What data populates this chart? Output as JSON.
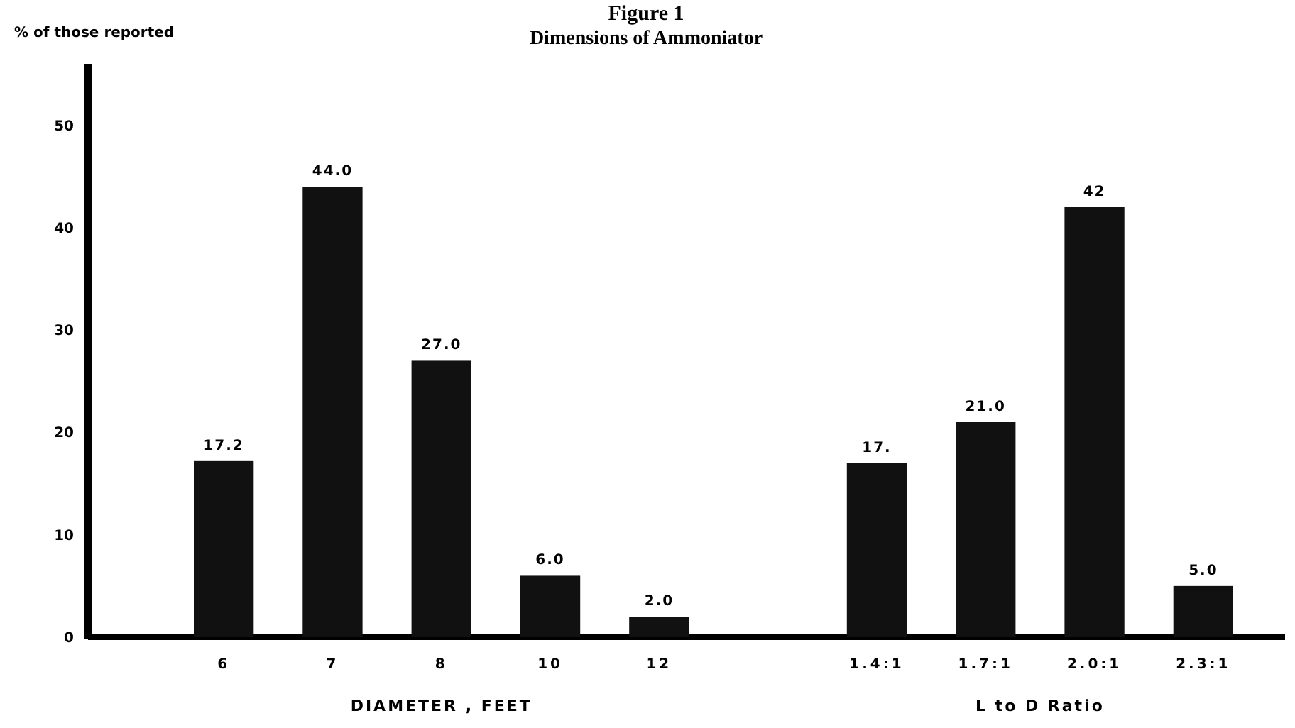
{
  "chart_data": {
    "type": "bar",
    "title": "Figure 1",
    "subtitle": "Dimensions of Ammoniator",
    "ylabel": "% of those reported",
    "xlabel": "DIAMETER , FEET",
    "annotations": [
      "L to D Ratio"
    ],
    "categories": [
      "6",
      "7",
      "8",
      "10",
      "12",
      null,
      "1.4:1",
      "1.7:1",
      "2.0:1",
      "2.3:1"
    ],
    "values": [
      17.2,
      44.0,
      27.0,
      6.0,
      2.0,
      null,
      17,
      21.0,
      42,
      5.0
    ],
    "value_labels": [
      "17.2",
      "44.0",
      "27.0",
      "6.0",
      "2.0",
      null,
      "17.",
      "21.0",
      "42",
      "5.0"
    ],
    "color": "#111111",
    "ylim": [
      0,
      56
    ],
    "yticks": [
      0,
      10,
      20,
      30,
      40,
      50
    ]
  }
}
